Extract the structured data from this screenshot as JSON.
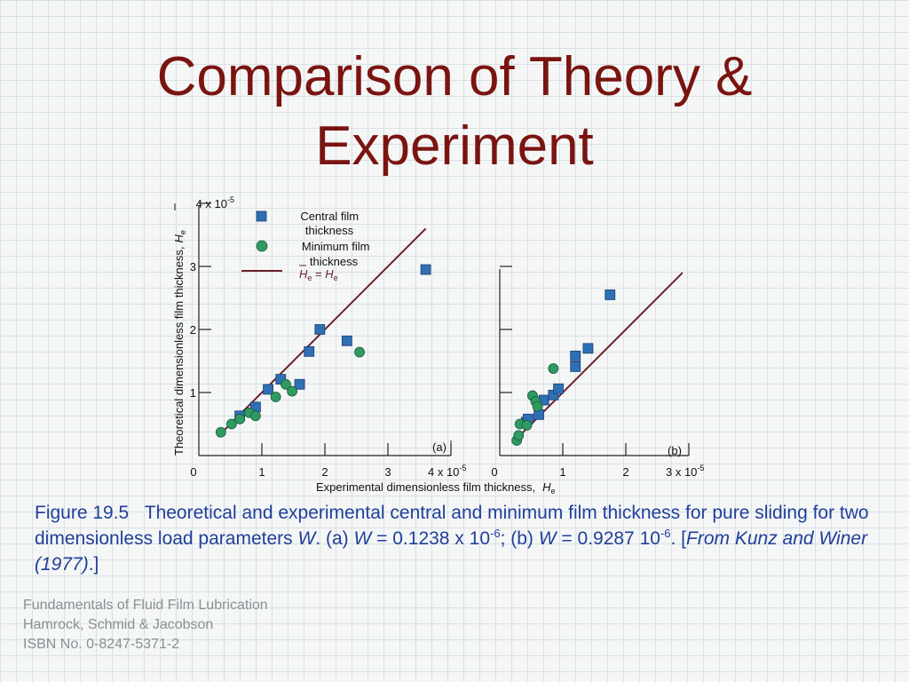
{
  "slide": {
    "title_line1": "Comparison of Theory &",
    "title_line2": "Experiment"
  },
  "caption": {
    "label": "Figure 19.5",
    "text1": "Theoretical and experimental central and minimum film thickness for pure sliding for two dimensionless load parameters ",
    "W": "W",
    "text2": ". (a) ",
    "text3": " = 0.1238 x 10",
    "exp_a": "-6",
    "text4": "; (b) ",
    "text5": " = 0.9287  10",
    "exp_b": "-6",
    "text6": ". [",
    "source": "From Kunz and Winer (1977)",
    "text7": ".]"
  },
  "credits": [
    "Fundamentals of Fluid Film Lubrication",
    "Hamrock, Schmid & Jacobson",
    "ISBN No. 0-8247-5371-2"
  ],
  "colors": {
    "title": "#7a1410",
    "caption": "#1f3f9a",
    "central_marker": "#2f6fb5",
    "minimum_marker": "#2f9a62",
    "reference_line": "#6b2028",
    "credits": "#8b8f93"
  },
  "chart_data": [
    {
      "type": "scatter",
      "panel_label": "(a)",
      "xlabel": "Experimental dimensionless film thickness,",
      "xlabel_symbol": "H",
      "xlabel_symbol_sub": "e",
      "ylabel": "Theoretical dimensionless film thickness,",
      "ylabel_symbol": "H̄",
      "ylabel_symbol_sub": "e",
      "xlim": [
        0,
        4
      ],
      "ylim": [
        0,
        4
      ],
      "axis_exponent": "10^-5",
      "x_ticks": [
        0,
        1,
        2,
        3,
        4
      ],
      "x_tick_labels": [
        "0",
        "1",
        "2",
        "3",
        "4 x 10"
      ],
      "x_tick_exp": [
        "",
        "",
        "",
        "",
        "-5"
      ],
      "y_ticks": [
        1,
        2,
        3,
        4
      ],
      "y_tick_labels": [
        "1",
        "2",
        "3",
        "4 x 10"
      ],
      "y_tick_exp": [
        "",
        "",
        "",
        "-5"
      ],
      "legend": {
        "central": "Central film thickness",
        "minimum": "Minimum film thickness",
        "line": "H̄e = He"
      },
      "reference_line": [
        [
          0.3,
          0.3
        ],
        [
          3.6,
          3.6
        ]
      ],
      "series": [
        {
          "name": "Central film thickness",
          "marker": "square",
          "points": [
            [
              0.65,
              0.63
            ],
            [
              0.9,
              0.77
            ],
            [
              1.1,
              1.05
            ],
            [
              1.3,
              1.21
            ],
            [
              1.6,
              1.13
            ],
            [
              1.75,
              1.65
            ],
            [
              1.92,
              2.0
            ],
            [
              2.35,
              1.82
            ],
            [
              3.6,
              2.95
            ]
          ]
        },
        {
          "name": "Minimum film thickness",
          "marker": "circle",
          "points": [
            [
              0.35,
              0.37
            ],
            [
              0.52,
              0.5
            ],
            [
              0.65,
              0.58
            ],
            [
              0.8,
              0.68
            ],
            [
              0.9,
              0.63
            ],
            [
              1.22,
              0.93
            ],
            [
              1.38,
              1.13
            ],
            [
              1.48,
              1.02
            ],
            [
              2.55,
              1.64
            ]
          ]
        }
      ]
    },
    {
      "type": "scatter",
      "panel_label": "(b)",
      "xlim": [
        0,
        3
      ],
      "ylim": [
        0,
        3
      ],
      "axis_exponent": "10^-5",
      "x_ticks": [
        0,
        1,
        2,
        3
      ],
      "x_tick_labels": [
        "0",
        "1",
        "2",
        "3 x 10"
      ],
      "x_tick_exp": [
        "",
        "",
        "",
        "-5"
      ],
      "y_ticks": [
        1,
        2,
        3
      ],
      "y_tick_labels": [
        "",
        "",
        ""
      ],
      "reference_line": [
        [
          0.2,
          0.2
        ],
        [
          2.9,
          2.9
        ]
      ],
      "series": [
        {
          "name": "Central film thickness",
          "marker": "square",
          "points": [
            [
              0.42,
              0.53
            ],
            [
              0.45,
              0.58
            ],
            [
              0.62,
              0.65
            ],
            [
              0.7,
              0.88
            ],
            [
              0.85,
              0.96
            ],
            [
              0.93,
              1.06
            ],
            [
              1.2,
              1.41
            ],
            [
              1.2,
              1.58
            ],
            [
              1.4,
              1.7
            ],
            [
              1.75,
              2.55
            ]
          ]
        },
        {
          "name": "Minimum film thickness",
          "marker": "circle",
          "points": [
            [
              0.27,
              0.24
            ],
            [
              0.3,
              0.32
            ],
            [
              0.32,
              0.5
            ],
            [
              0.43,
              0.48
            ],
            [
              0.52,
              0.95
            ],
            [
              0.57,
              0.86
            ],
            [
              0.6,
              0.78
            ],
            [
              0.85,
              1.38
            ]
          ]
        }
      ]
    }
  ]
}
